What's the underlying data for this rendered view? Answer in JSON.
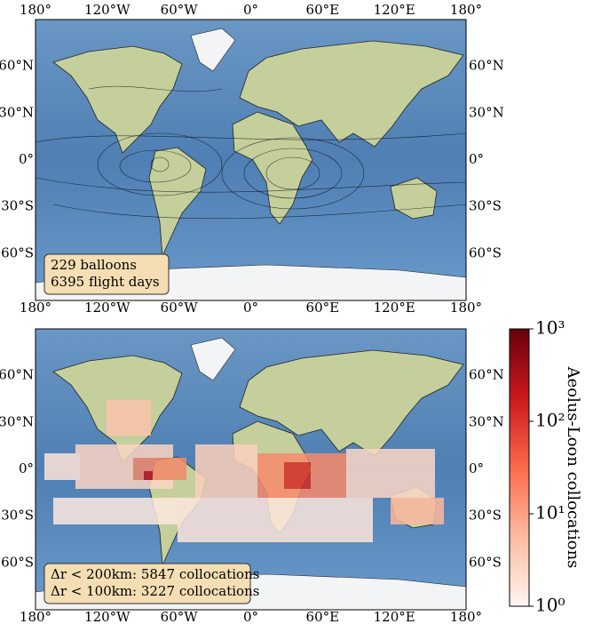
{
  "maps": [
    {
      "x_labels": [
        "180°",
        "120°W",
        "60°W",
        "0°",
        "60°E",
        "120°E",
        "180°"
      ],
      "y_labels": [
        "60°N",
        "30°N",
        "0°",
        "30°S",
        "60°S"
      ],
      "annotation": [
        "229 balloons",
        "6395 flight days"
      ]
    },
    {
      "x_labels": [
        "180°",
        "120°W",
        "60°W",
        "0°",
        "60°E",
        "120°E",
        "180°"
      ],
      "y_labels": [
        "60°N",
        "30°N",
        "0°",
        "30°S",
        "60°S"
      ],
      "annotation": [
        "Δr < 200km: 5847 collocations",
        "Δr < 100km: 3227 collocations"
      ]
    }
  ],
  "colorbar": {
    "label": "Aeolus-Loon collocations",
    "log": true,
    "clim": [
      1,
      1000
    ],
    "ticks": [
      {
        "value": 1,
        "label": "10⁰"
      },
      {
        "value": 10,
        "label": "10¹"
      },
      {
        "value": 100,
        "label": "10²"
      },
      {
        "value": 1000,
        "label": "10³"
      }
    ],
    "colors": [
      "#fff5f0",
      "#fcbba1",
      "#fb6a4a",
      "#cb181d",
      "#67000d"
    ]
  }
}
